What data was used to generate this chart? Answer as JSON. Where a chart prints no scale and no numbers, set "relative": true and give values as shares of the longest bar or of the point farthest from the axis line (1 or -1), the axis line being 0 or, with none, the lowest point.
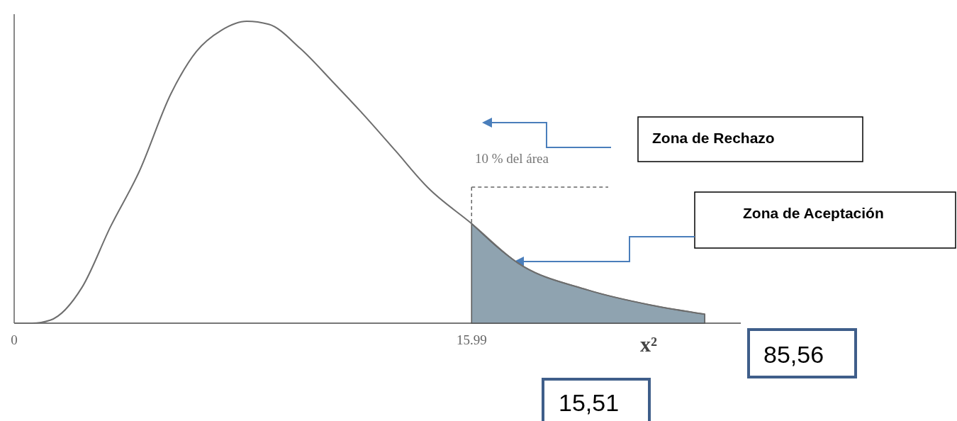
{
  "chart_data": {
    "type": "line",
    "relative": true,
    "xlabel": "x²",
    "xlim": [
      0,
      25.4
    ],
    "xticks": [
      0,
      15.99
    ],
    "grid": false,
    "marker": "none",
    "line_style": "solid",
    "series": [
      {
        "color": "#6e6e6e",
        "x": [
          0,
          0.62,
          1.26,
          2.38,
          3.37,
          4.36,
          5.48,
          6.37,
          7.24,
          8.13,
          8.9,
          10.0,
          11.13,
          12.22,
          13.34,
          14.45,
          15.99,
          17.6,
          20.05,
          22.26,
          24.14
        ],
        "values": [
          0,
          0,
          0.01,
          0.12,
          0.32,
          0.5,
          0.76,
          0.9,
          0.97,
          1,
          0.99,
          0.91,
          0.8,
          0.69,
          0.57,
          0.45,
          0.33,
          0.2,
          0.11,
          0.06,
          0.03
        ]
      },
      {
        "type": "area",
        "color": "#8fa3b0",
        "x": [
          15.99,
          17.6,
          20.05,
          22.26,
          24.14
        ],
        "values": [
          0.33,
          0.2,
          0.11,
          0.06,
          0.03
        ]
      }
    ],
    "annotations": [
      "10 % del área",
      "Zona de Rechazo",
      "Zona de Aceptación",
      "85,56",
      "15,51"
    ]
  }
}
